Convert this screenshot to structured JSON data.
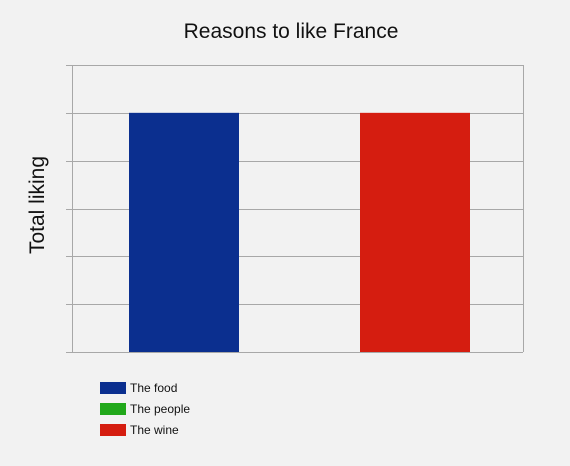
{
  "chart_data": {
    "type": "bar",
    "title": "Reasons to like France",
    "ylabel": "Total liking",
    "xlabel": "",
    "categories": [
      "The food",
      "The people",
      "The wine"
    ],
    "values": [
      5,
      0,
      5
    ],
    "colors": [
      "#0b2f8f",
      "#21a81b",
      "#d51d10"
    ],
    "ylim": [
      0,
      6
    ],
    "ytick_count": 6,
    "grid": true,
    "show_tick_labels": false,
    "legend": {
      "placement": "bottom-left",
      "entries": [
        {
          "label": "The food",
          "color": "#0b2f8f"
        },
        {
          "label": "The people",
          "color": "#21a81b"
        },
        {
          "label": "The wine",
          "color": "#d51d10"
        }
      ]
    }
  }
}
